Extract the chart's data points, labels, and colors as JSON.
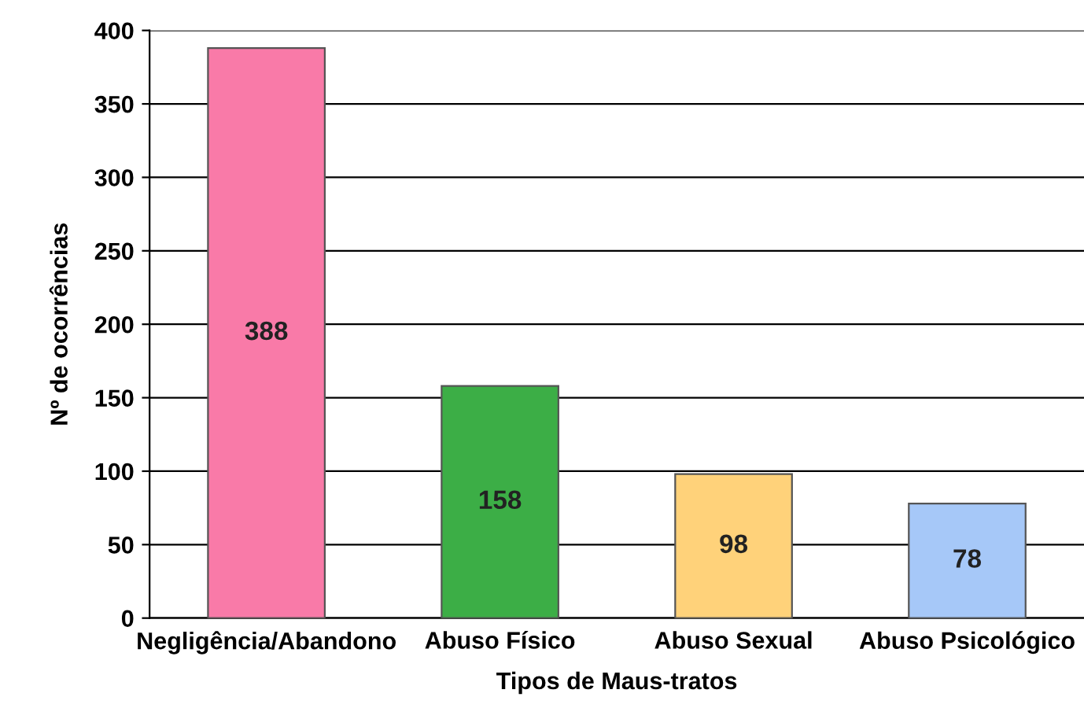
{
  "chart_data": {
    "type": "bar",
    "xlabel": "Tipos de Maus-tratos",
    "ylabel": "Nº de ocorrências",
    "categories": [
      "Negligência/Abandono",
      "Abuso Físico",
      "Abuso Sexual",
      "Abuso Psicológico"
    ],
    "values": [
      388,
      158,
      98,
      78
    ],
    "colors": [
      "#f97aa8",
      "#3cae46",
      "#ffd27a",
      "#a6c8f8"
    ],
    "ylim": [
      0,
      400
    ],
    "yticks": [
      0,
      50,
      100,
      150,
      200,
      250,
      300,
      350,
      400
    ],
    "grid": "y",
    "data_labels": true
  }
}
